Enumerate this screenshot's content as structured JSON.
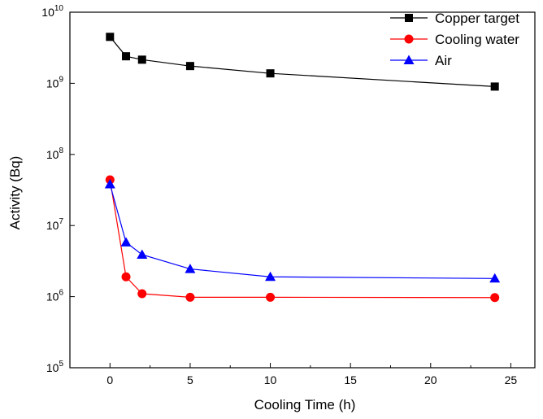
{
  "chart_data": {
    "type": "line",
    "title": "",
    "xlabel": "Cooling Time  (h)",
    "ylabel": "Activity (Bq)",
    "xlim": [
      -2.5,
      26.5
    ],
    "ylim": [
      100000,
      10000000000
    ],
    "yscale": "log",
    "grid": false,
    "legend_position": "top-right",
    "x_ticks": [
      0,
      5,
      10,
      15,
      20,
      25
    ],
    "x_tick_labels": [
      "0",
      "5",
      "10",
      "15",
      "20",
      "25"
    ],
    "y_ticks": [
      100000,
      1000000,
      10000000,
      100000000,
      1000000000,
      10000000000
    ],
    "y_tick_labels": [
      {
        "base": "10",
        "exp": "5"
      },
      {
        "base": "10",
        "exp": "6"
      },
      {
        "base": "10",
        "exp": "7"
      },
      {
        "base": "10",
        "exp": "8"
      },
      {
        "base": "10",
        "exp": "9"
      },
      {
        "base": "10",
        "exp": "10"
      }
    ],
    "series": [
      {
        "name": "Copper target",
        "color": "#000000",
        "marker": "square",
        "x": [
          0,
          1,
          2,
          5,
          10,
          24
        ],
        "y": [
          4500000000,
          2400000000,
          2150000000,
          1750000000,
          1380000000,
          900000000
        ]
      },
      {
        "name": "Cooling water",
        "color": "#ff0000",
        "marker": "circle",
        "x": [
          0,
          1,
          2,
          5,
          10,
          24
        ],
        "y": [
          44000000,
          1900000,
          1100000,
          980000,
          980000,
          970000
        ]
      },
      {
        "name": "Air",
        "color": "#0000ff",
        "marker": "triangle",
        "x": [
          0,
          1,
          2,
          5,
          10,
          24
        ],
        "y": [
          38000000,
          5800000,
          3900000,
          2450000,
          1900000,
          1800000
        ]
      }
    ]
  }
}
